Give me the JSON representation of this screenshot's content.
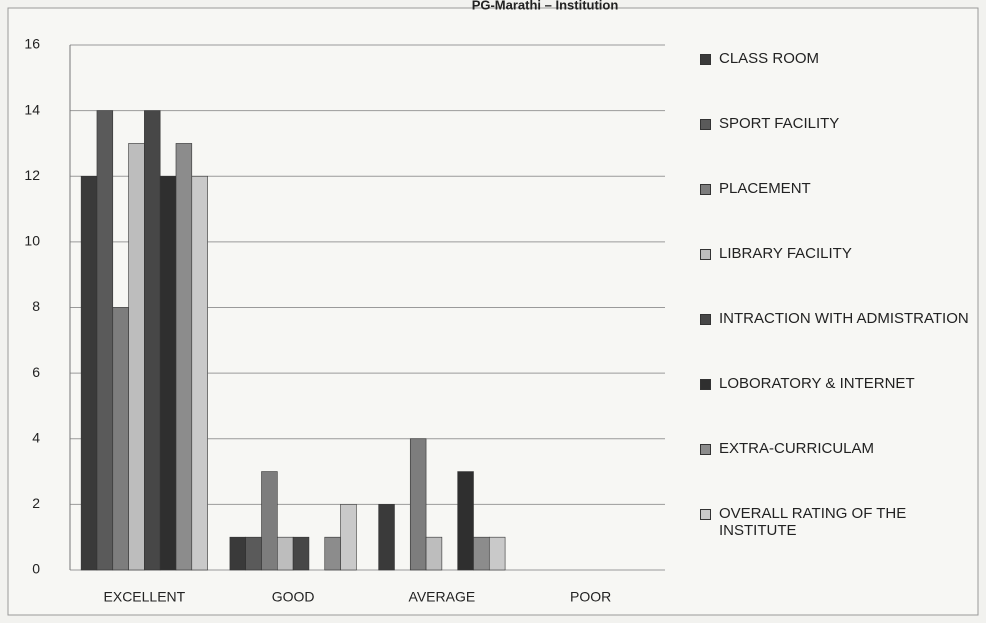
{
  "chart_data": {
    "type": "bar",
    "title": "PG-Marathi – Institution",
    "categories": [
      "EXCELLENT",
      "GOOD",
      "AVERAGE",
      "POOR"
    ],
    "series": [
      {
        "name": "CLASS ROOM",
        "color": "#3a3a3a",
        "values": [
          12,
          1,
          2,
          0
        ]
      },
      {
        "name": "SPORT FACILITY",
        "color": "#5a5a5a",
        "values": [
          14,
          1,
          0,
          0
        ]
      },
      {
        "name": "PLACEMENT",
        "color": "#7d7d7d",
        "values": [
          8,
          3,
          4,
          0
        ]
      },
      {
        "name": "LIBRARY FACILITY",
        "color": "#bdbdbd",
        "values": [
          13,
          1,
          1,
          0
        ]
      },
      {
        "name": "INTRACTION WITH ADMISTRATION",
        "color": "#474747",
        "values": [
          14,
          1,
          0,
          0
        ]
      },
      {
        "name": "LOBORATORY & INTERNET",
        "color": "#2f2f2f",
        "values": [
          12,
          0,
          3,
          0
        ]
      },
      {
        "name": "EXTRA-CURRICULAM",
        "color": "#8c8c8c",
        "values": [
          13,
          1,
          1,
          0
        ]
      },
      {
        "name": "OVERALL RATING OF THE INSTITUTE",
        "color": "#c9c9c9",
        "values": [
          12,
          2,
          1,
          0
        ]
      }
    ],
    "ylim": [
      0,
      16
    ],
    "yticks": [
      0,
      2,
      4,
      6,
      8,
      10,
      12,
      14,
      16
    ],
    "grid": true,
    "legend": "right"
  }
}
